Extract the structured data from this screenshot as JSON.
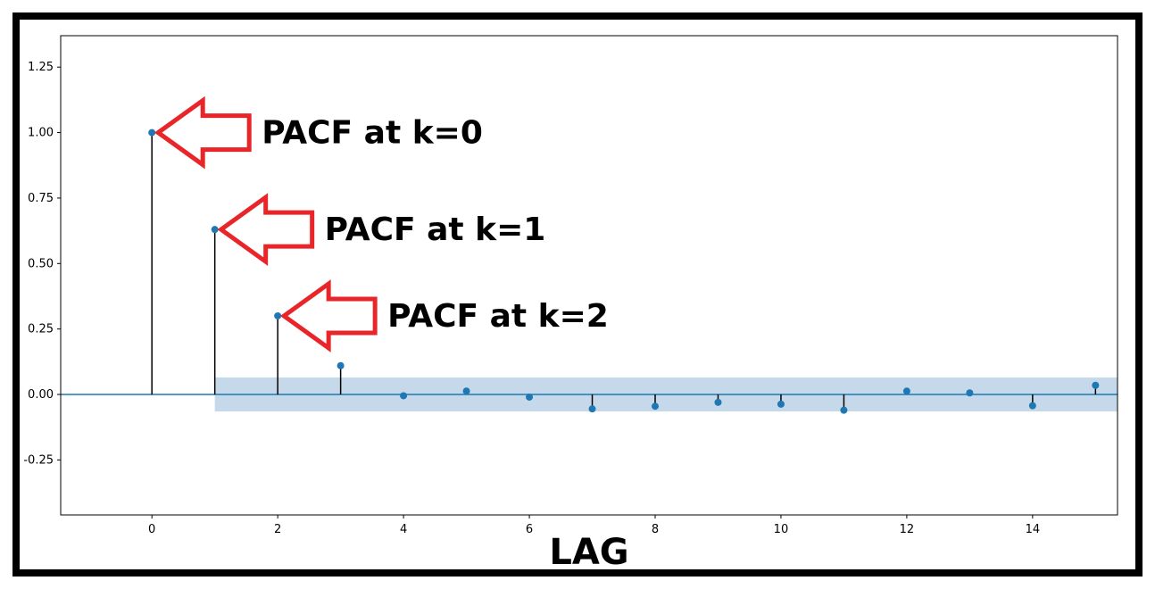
{
  "chart_data": {
    "type": "scatter",
    "style": "stem",
    "title": "",
    "xlabel": "LAG",
    "ylabel": "",
    "xlim": [
      -1.45,
      15.35
    ],
    "ylim": [
      -0.46,
      1.37
    ],
    "xticks": [
      0,
      2,
      4,
      6,
      8,
      10,
      12,
      14
    ],
    "yticks": [
      -0.25,
      0.0,
      0.25,
      0.5,
      0.75,
      1.0,
      1.25
    ],
    "ytick_labels": [
      "-0.25",
      "0.00",
      "0.25",
      "0.50",
      "0.75",
      "1.00",
      "1.25"
    ],
    "grid": false,
    "x": [
      0,
      1,
      2,
      3,
      4,
      5,
      6,
      7,
      8,
      9,
      10,
      11,
      12,
      13,
      14,
      15
    ],
    "values": [
      1.0,
      0.63,
      0.3,
      0.11,
      -0.005,
      0.013,
      -0.01,
      -0.055,
      -0.045,
      -0.03,
      -0.037,
      -0.06,
      0.013,
      0.006,
      -0.043,
      0.035
    ],
    "confidence_band": {
      "x_start": 1,
      "lower": -0.065,
      "upper": 0.065,
      "color": "#c5d9ea"
    },
    "colors": {
      "marker": "#1f77b4",
      "stem": "#000000",
      "baseline": "#1f77b4",
      "arrow": "#e8262a"
    },
    "annotations": [
      {
        "text": "PACF at k=0",
        "x": 0,
        "y": 1.0
      },
      {
        "text": "PACF at k=1",
        "x": 1,
        "y": 0.63
      },
      {
        "text": "PACF at k=2",
        "x": 2,
        "y": 0.3
      }
    ]
  }
}
